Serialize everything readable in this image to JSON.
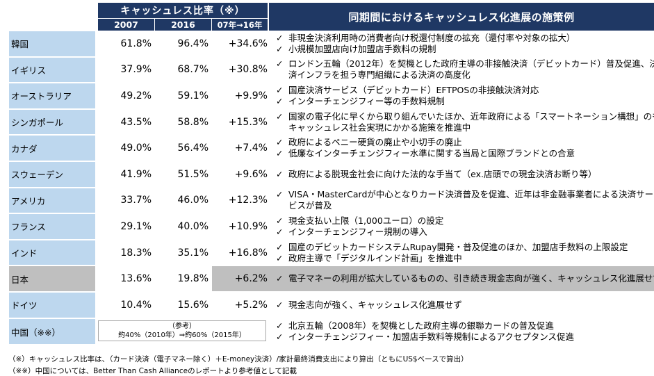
{
  "header": {
    "ratio_title": "キャッシュレス比率（※）",
    "year1": "2007",
    "year2": "2016",
    "change": "07年→16年",
    "policy_title": "同期間におけるキャッシュレス化進展の施策例"
  },
  "rows": [
    {
      "country": "韓国",
      "v2007": "61.8%",
      "v2016": "96.4%",
      "change": "+34.6%",
      "policies": [
        "非現金決済利用時の消費者向け税還付制度の拡充（還付率や対象の拡大）",
        "小規模加盟店向け加盟店手数料の規制"
      ]
    },
    {
      "country": "イギリス",
      "v2007": "37.9%",
      "v2016": "68.7%",
      "change": "+30.8%",
      "policies": [
        "ロンドン五輪（2012年）を契機とした政府主導の非接触決済（デビットカード）普及促進、決"
      ],
      "continuation": "済インフラを担う専門組織による決済の高度化"
    },
    {
      "country": "オーストラリア",
      "v2007": "49.2%",
      "v2016": "59.1%",
      "change": "+9.9%",
      "policies": [
        "国産決済サービス（デビットカード）EFTPOSの非接触決済対応",
        "インターチェンジフィー等の手数料規制"
      ]
    },
    {
      "country": "シンガポール",
      "v2007": "43.5%",
      "v2016": "58.8%",
      "change": "+15.3%",
      "policies": [
        "国家の電子化に早くから取り組んでいたほか、近年政府による「スマートネーション構想」のもと、"
      ],
      "continuation": "キャッシュレス社会実現にかかる施策を推進中"
    },
    {
      "country": "カナダ",
      "v2007": "49.0%",
      "v2016": "56.4%",
      "change": "+7.4%",
      "policies": [
        "政府によるペニー硬貨の廃止や小切手の廃止",
        "低廉なインターチェンジフィー水準に関する当局と国際ブランドとの合意"
      ]
    },
    {
      "country": "スウェーデン",
      "v2007": "41.9%",
      "v2016": "51.5%",
      "change": "+9.6%",
      "policies": [
        "政府による脱現金社会に向けた法的な手当て（ex.店頭での現金決済お断り等）"
      ]
    },
    {
      "country": "アメリカ",
      "v2007": "33.7%",
      "v2016": "46.0%",
      "change": "+12.3%",
      "policies": [
        "VISA・MasterCardが中心となりカード決済普及を促進、近年は非金融事業者による決済サー"
      ],
      "continuation": "ビスが普及"
    },
    {
      "country": "フランス",
      "v2007": "29.1%",
      "v2016": "40.0%",
      "change": "+10.9%",
      "policies": [
        "現金支払い上限（1,000ユーロ）の設定",
        "インターチェンジフィー規制の導入"
      ]
    },
    {
      "country": "インド",
      "v2007": "18.3%",
      "v2016": "35.1%",
      "change": "+16.8%",
      "policies": [
        "国産のデビットカードシステムRupay開発・普及促進のほか、加盟店手数料の上限設定",
        "政府主導で「デジタルインド計画」を推進中"
      ]
    },
    {
      "country": "日本",
      "v2007": "13.6%",
      "v2016": "19.8%",
      "change": "+6.2%",
      "policies": [
        "電子マネーの利用が拡大しているものの、引き続き現金志向が強く、キャッシュレス化進展せず"
      ]
    },
    {
      "country": "ドイツ",
      "v2007": "10.4%",
      "v2016": "15.6%",
      "change": "+5.2%",
      "policies": [
        "現金志向が強く、キャッシュレス化進展せず"
      ]
    }
  ],
  "china": {
    "country": "中国（※※）",
    "ref_label": "（参考）",
    "ref_value": "約40%（2010年）⇒約60%（2015年）",
    "policies": [
      "北京五輪（2008年）を契機とした政府主導の銀聯カードの普及促進",
      "インターチェンジフィー・加盟店手数料等規制によるアクセプタンス促進"
    ]
  },
  "footnotes": [
    "（※）キャッシュレス比率は、（カード決済（電子マネー除く）＋E-money決済）/家計最終消費支出により算出（ともにUS$ベースで算出）",
    "（※※）中国については、Better Than Cash Allianceのレポートより参考値として記載"
  ],
  "colors": {
    "header": "#1f3864",
    "country_cell": "#bdd7ee",
    "highlight": "#bfbfbf"
  }
}
